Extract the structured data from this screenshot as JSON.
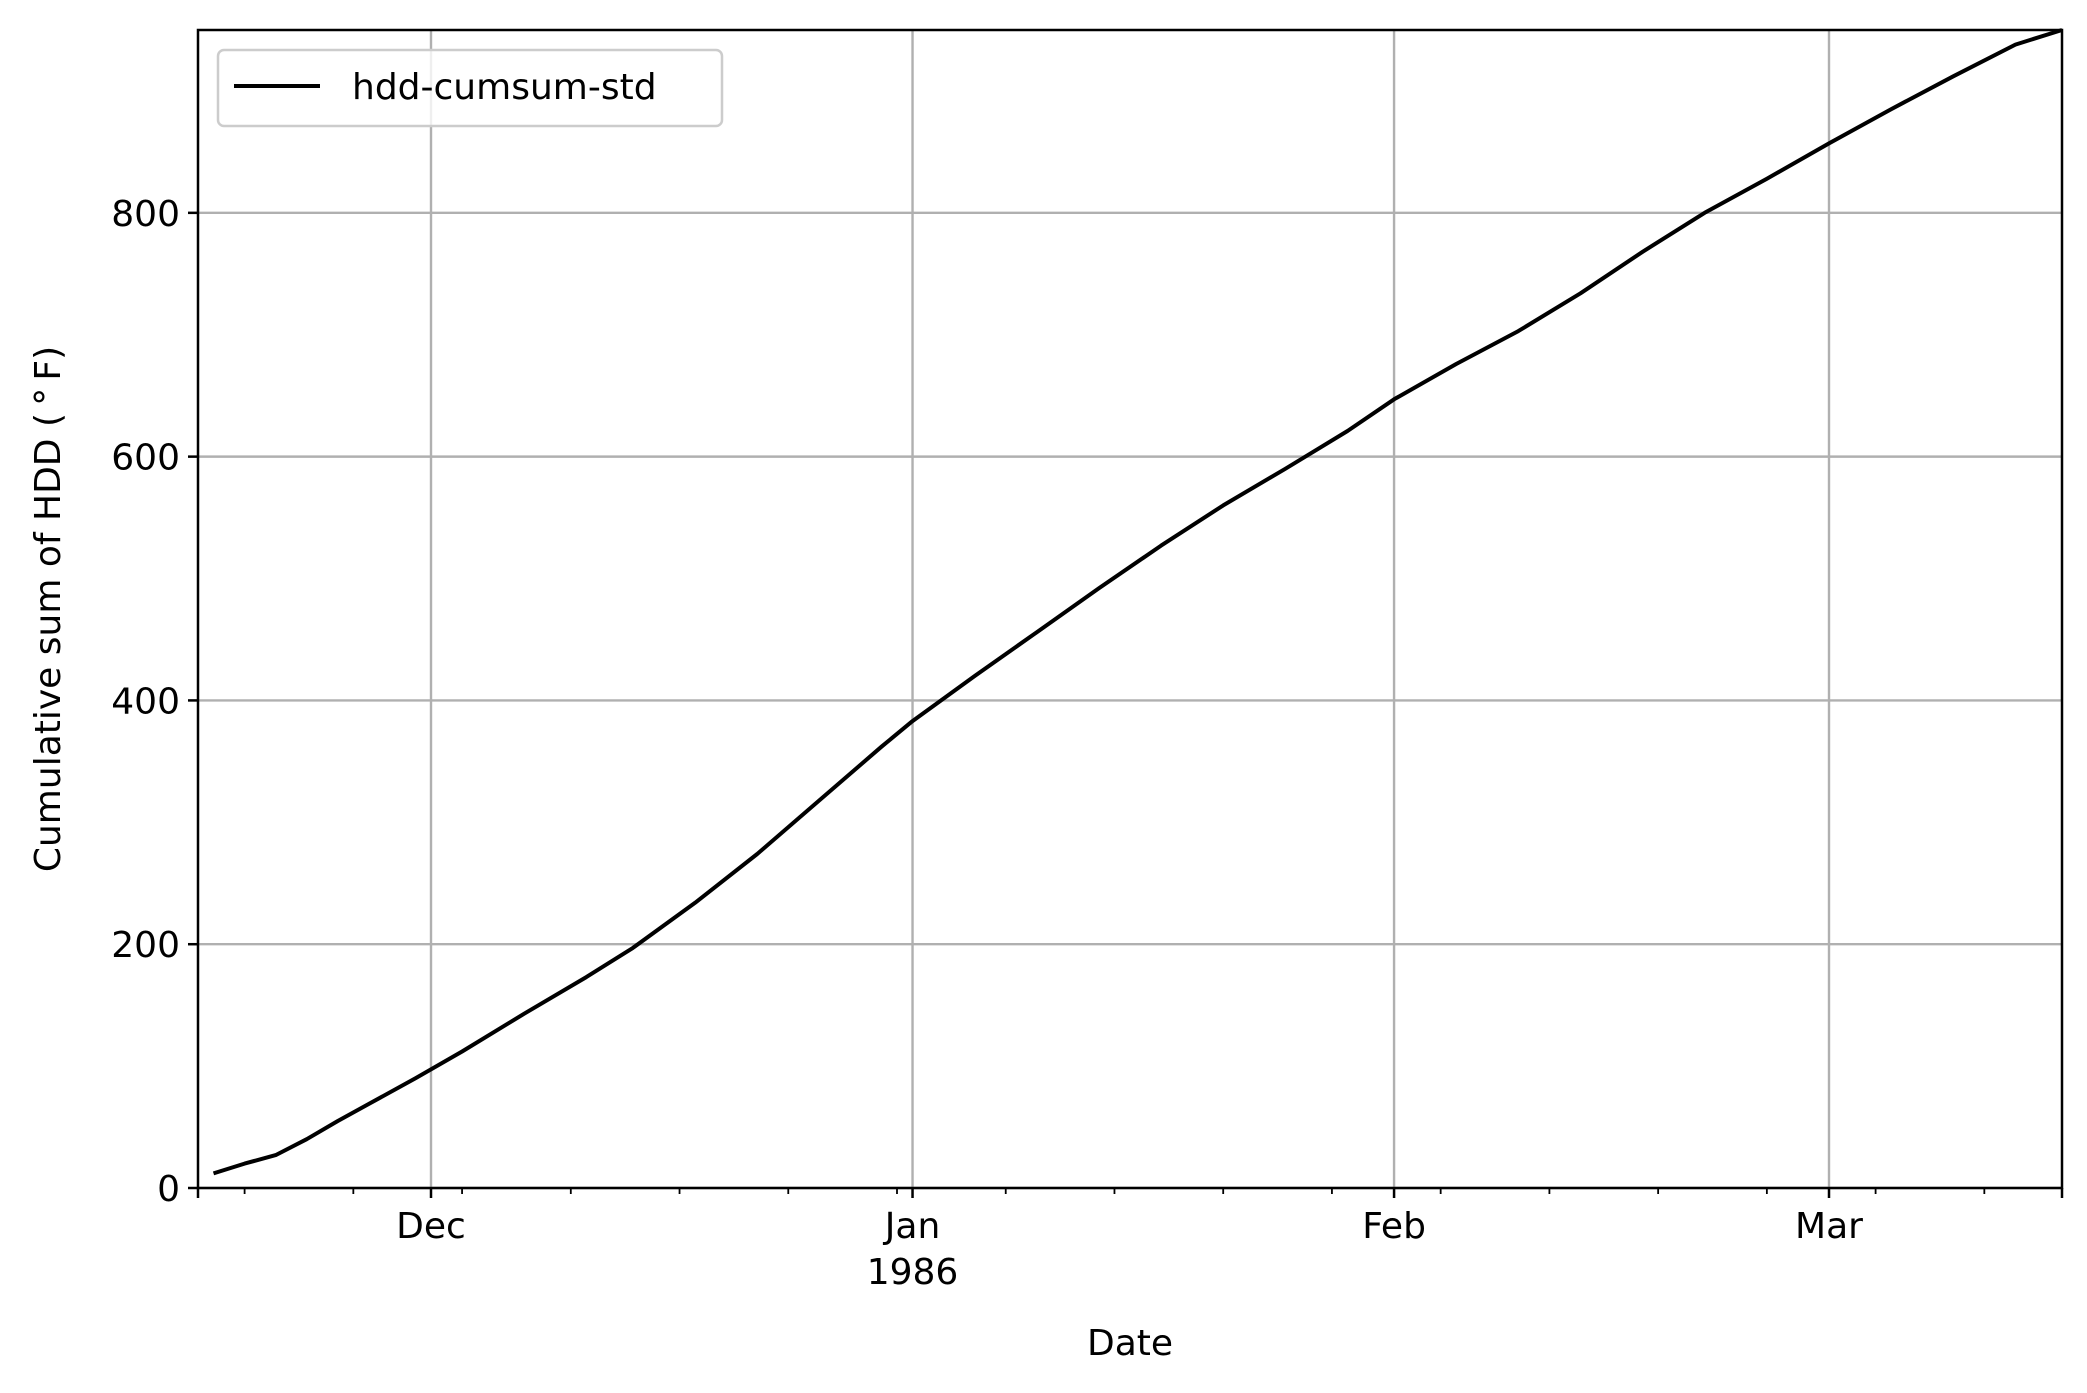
{
  "chart_data": {
    "type": "line",
    "xlabel": "Date",
    "ylabel": "Cumulative sum of HDD ($^\\circ$F)",
    "ylabel_display": "Cumulative sum of HDD ( ° F)",
    "xlim": [
      "1985-11-16",
      "1986-03-16"
    ],
    "ylim": [
      0,
      950
    ],
    "grid": true,
    "legend": {
      "position": "upper left",
      "entries": [
        "hdd-cumsum-std"
      ]
    },
    "x_major_ticks": [
      {
        "date": "1985-12-01",
        "label": "Dec",
        "sublabel": ""
      },
      {
        "date": "1986-01-01",
        "label": "Jan",
        "sublabel": "1986"
      },
      {
        "date": "1986-02-01",
        "label": "Feb",
        "sublabel": ""
      },
      {
        "date": "1986-03-01",
        "label": "Mar",
        "sublabel": ""
      }
    ],
    "x_minor_ticks": [
      "1985-11-19",
      "1985-11-26",
      "1985-12-03",
      "1985-12-10",
      "1985-12-17",
      "1985-12-24",
      "1985-12-31",
      "1986-01-07",
      "1986-01-14",
      "1986-01-21",
      "1986-01-28",
      "1986-02-04",
      "1986-02-11",
      "1986-02-18",
      "1986-02-25",
      "1986-03-04",
      "1986-03-11"
    ],
    "y_ticks": [
      0,
      200,
      400,
      600,
      800
    ],
    "series": [
      {
        "name": "hdd-cumsum-std",
        "color": "#000000",
        "points": [
          [
            "1985-11-17",
            12
          ],
          [
            "1985-11-19",
            20
          ],
          [
            "1985-11-21",
            27
          ],
          [
            "1985-11-23",
            40
          ],
          [
            "1985-11-25",
            55
          ],
          [
            "1985-11-27",
            69
          ],
          [
            "1985-11-30",
            90
          ],
          [
            "1985-12-03",
            112
          ],
          [
            "1985-12-07",
            143
          ],
          [
            "1985-12-11",
            173
          ],
          [
            "1985-12-14",
            197
          ],
          [
            "1985-12-18",
            234
          ],
          [
            "1985-12-22",
            274
          ],
          [
            "1985-12-26",
            318
          ],
          [
            "1985-12-30",
            362
          ],
          [
            "1986-01-01",
            383
          ],
          [
            "1986-01-05",
            420
          ],
          [
            "1986-01-09",
            456
          ],
          [
            "1986-01-13",
            492
          ],
          [
            "1986-01-17",
            527
          ],
          [
            "1986-01-21",
            560
          ],
          [
            "1986-01-25",
            590
          ],
          [
            "1986-01-29",
            621
          ],
          [
            "1986-02-01",
            647
          ],
          [
            "1986-02-05",
            676
          ],
          [
            "1986-02-09",
            703
          ],
          [
            "1986-02-13",
            734
          ],
          [
            "1986-02-17",
            768
          ],
          [
            "1986-02-21",
            800
          ],
          [
            "1986-02-25",
            828
          ],
          [
            "1986-03-01",
            857
          ],
          [
            "1986-03-05",
            885
          ],
          [
            "1986-03-09",
            912
          ],
          [
            "1986-03-13",
            938
          ],
          [
            "1986-03-16",
            955
          ]
        ]
      }
    ]
  }
}
